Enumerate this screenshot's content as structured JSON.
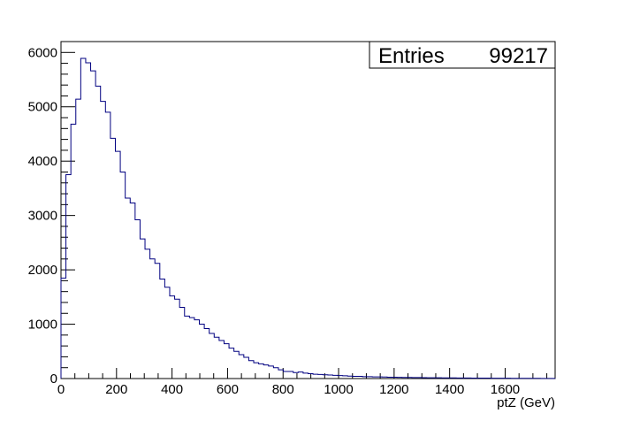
{
  "chart_data": {
    "type": "histogram",
    "title": "",
    "xlabel": "ptZ (GeV)",
    "ylabel": "",
    "xlim": [
      0,
      1780
    ],
    "ylim": [
      0,
      6200
    ],
    "bin_width": 17.8,
    "grid": false,
    "x_ticks": [
      0,
      200,
      400,
      600,
      800,
      1000,
      1200,
      1400,
      1600
    ],
    "y_ticks": [
      0,
      1000,
      2000,
      3000,
      4000,
      5000,
      6000
    ],
    "series": [
      {
        "color": "#000080",
        "values": [
          1850,
          3750,
          4680,
          5140,
          5890,
          5810,
          5660,
          5380,
          5100,
          4900,
          4420,
          4180,
          3800,
          3320,
          3230,
          2920,
          2570,
          2380,
          2200,
          2120,
          1830,
          1680,
          1520,
          1460,
          1310,
          1150,
          1120,
          1080,
          1000,
          920,
          830,
          760,
          700,
          640,
          560,
          500,
          440,
          390,
          330,
          290,
          270,
          250,
          230,
          200,
          160,
          130,
          130,
          110,
          120,
          100,
          90,
          80,
          75,
          70,
          65,
          60,
          55,
          50,
          45,
          40,
          40,
          35,
          35,
          30,
          30,
          28,
          25,
          25,
          22,
          20,
          20,
          18,
          18,
          16,
          15,
          15,
          14,
          13,
          12,
          12,
          11,
          10,
          10,
          9,
          9,
          8,
          8,
          7,
          7,
          6,
          6,
          5,
          5,
          5,
          4,
          4,
          4,
          3,
          3,
          3
        ]
      }
    ],
    "stats_box": {
      "label": "Entries",
      "value": "99217",
      "position": "top-right"
    }
  }
}
